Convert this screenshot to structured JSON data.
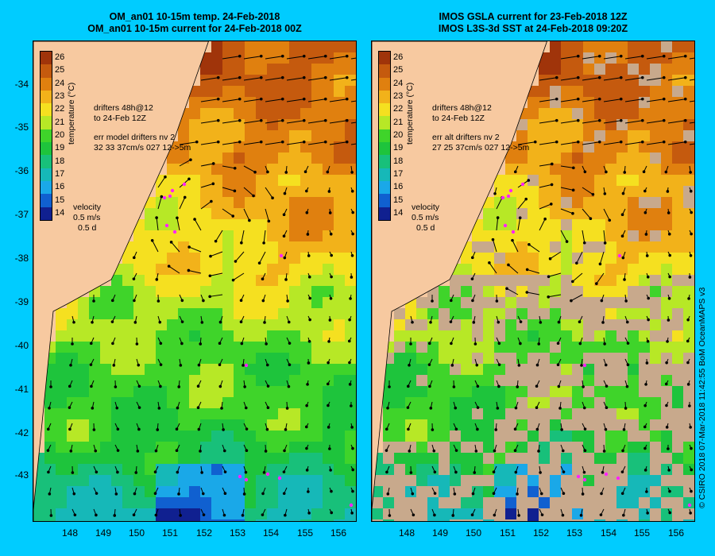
{
  "panels": [
    {
      "title_line1": "OM_an01 10-15m temp. 24-Feb-2018",
      "title_line2": "OM_an01 10-15m current for 24-Feb-2018 00Z",
      "drifters_line1": "drifters 48h@12",
      "drifters_line2": "to 24-Feb 12Z",
      "err_line1": "err model drifters nv 2",
      "err_line2": "32 33 37cm/s 027 12->5m",
      "velocity_label": "velocity",
      "velocity_scale": "0.5 m/s",
      "velocity_time": "0.5 d",
      "data_mask": false
    },
    {
      "title_line1": "IMOS GSLA current for 23-Feb-2018 12Z",
      "title_line2": "IMOS L3S-3d SST at 24-Feb-2018 09:20Z",
      "drifters_line1": "drifters 48h@12",
      "drifters_line2": "to 24-Feb 12Z",
      "err_line1": "err alt drifters nv 2",
      "err_line2": "27 25 37cm/s 027 12->5m",
      "velocity_label": "velocity",
      "velocity_scale": "0.5 m/s",
      "velocity_time": "0.5 d",
      "data_mask": true
    }
  ],
  "colorbar": {
    "label": "temperature (°C)",
    "ticks": [
      "26",
      "25",
      "24",
      "23",
      "22",
      "21",
      "20",
      "19",
      "18",
      "17",
      "16",
      "15",
      "14"
    ],
    "colors": [
      "#a0340a",
      "#c55a0e",
      "#e0800f",
      "#f2b21a",
      "#f5e020",
      "#b7e826",
      "#3fd42a",
      "#1ec43c",
      "#18c07a",
      "#16b8b8",
      "#1aa8e8",
      "#1060d0",
      "#102090"
    ]
  },
  "latitude_labels": [
    "-34",
    "-35",
    "-36",
    "-37",
    "-38",
    "-39",
    "-40",
    "-41",
    "-42",
    "-43"
  ],
  "longitude_labels": [
    "148",
    "149",
    "150",
    "151",
    "152",
    "153",
    "154",
    "155",
    "156"
  ],
  "land_color": "#f7c9a0",
  "nodata_color": "#c8a98c",
  "drifter_color": "#ff22ff",
  "credit": "© CSIRO 2018  07-Mar-2018 11:42:55 BoM OceanMAPS v3"
}
